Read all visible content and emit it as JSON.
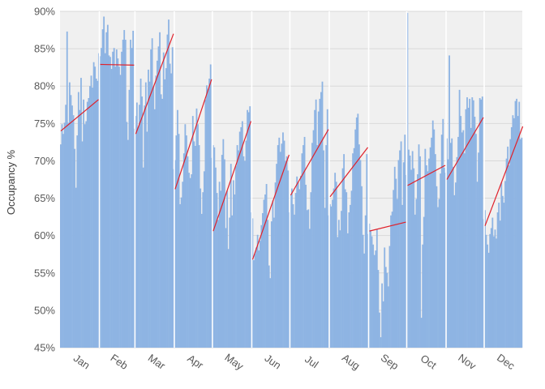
{
  "chart_data": {
    "type": "bar",
    "title": "",
    "xlabel": "",
    "ylabel": "Occupancy %",
    "ylim": [
      45,
      90
    ],
    "y_tick_values": [
      45,
      50,
      55,
      60,
      65,
      70,
      75,
      80,
      85,
      90
    ],
    "y_tick_labels": [
      "45%",
      "50%",
      "55%",
      "60%",
      "65%",
      "70%",
      "75%",
      "80%",
      "85%",
      "90%"
    ],
    "months": [
      "Jan",
      "Feb",
      "Mar",
      "Apr",
      "May",
      "Jun",
      "Jul",
      "Aug",
      "Sep",
      "Oct",
      "Nov",
      "Dec"
    ],
    "days_per_month": [
      31,
      28,
      31,
      30,
      31,
      30,
      31,
      31,
      30,
      31,
      30,
      31
    ],
    "series": [
      {
        "values": [
          72.2,
          74.9,
          73.6,
          75.1,
          77.5,
          87.3,
          75.1,
          80.5,
          78.8,
          77.4,
          76.1,
          71.6,
          66.4,
          73.4,
          79.2,
          76.8,
          81.1,
          72.6,
          78.2,
          74.9,
          75.3,
          77.9,
          78.4,
          80.0,
          81.4,
          79.8,
          83.2,
          82.6,
          81.0,
          80.7,
          84.4,
          84.0,
          85.1,
          87.6,
          89.3,
          84.4,
          87.2,
          88.2,
          84.1,
          83.9,
          82.3,
          84.6,
          85.1,
          82.6,
          84.9,
          83.7,
          82.6,
          81.5,
          84.6,
          86.2,
          87.5,
          86.2,
          75.2,
          72.8,
          79.5,
          86.2,
          85.1,
          87.4,
          74.3,
          76.0,
          77.8,
          74.5,
          77.5,
          81.0,
          78.6,
          69.1,
          77.4,
          80.5,
          73.9,
          82.2,
          80.6,
          84.9,
          86.4,
          79.9,
          76.9,
          81.4,
          83.4,
          85.3,
          87.2,
          78.9,
          78.3,
          84.5,
          80.9,
          82.4,
          86.9,
          88.9,
          83.0,
          81.7,
          85.2,
          68.9,
          70.1,
          73.4,
          76.8,
          73.6,
          64.2,
          65.1,
          67.2,
          71.0,
          74.9,
          73.4,
          70.6,
          68.4,
          67.7,
          68.2,
          76.0,
          72.6,
          72.0,
          77.0,
          74.9,
          72.1,
          66.3,
          62.9,
          65.8,
          68.6,
          78.2,
          80.1,
          79.6,
          81.0,
          82.9,
          70.4,
          72.1,
          71.8,
          69.1,
          65.7,
          62.1,
          67.2,
          66.0,
          70.8,
          72.9,
          70.2,
          61.0,
          66.0,
          58.2,
          62.4,
          69.6,
          62.7,
          67.4,
          65.5,
          69.3,
          72.1,
          71.4,
          73.9,
          74.5,
          75.3,
          70.6,
          70.0,
          72.7,
          76.8,
          76.5,
          77.3,
          63.1,
          62.3,
          56.7,
          57.6,
          58.4,
          60.1,
          58.0,
          59.3,
          61.4,
          63.0,
          64.8,
          65.5,
          66.9,
          62.1,
          56.0,
          54.3,
          61.9,
          64.7,
          62.4,
          67.1,
          69.6,
          72.1,
          73.1,
          71.2,
          72.3,
          73.8,
          72.7,
          70.0,
          70.6,
          68.7,
          63.1,
          65.4,
          66.3,
          64.2,
          62.8,
          65.7,
          67.9,
          67.1,
          66.2,
          68.0,
          71.0,
          72.1,
          73.2,
          66.8,
          63.4,
          63.5,
          60.9,
          65.8,
          72.4,
          74.1,
          76.8,
          78.2,
          72.1,
          76.6,
          78.3,
          79.2,
          80.6,
          71.4,
          63.7,
          72.1,
          76.9,
          62.7,
          64.2,
          63.9,
          64.8,
          66.3,
          68.4,
          67.2,
          59.8,
          62.1,
          60.7,
          63.3,
          69.0,
          70.9,
          66.2,
          65.8,
          60.3,
          63.1,
          64.1,
          66.0,
          71.0,
          71.7,
          74.2,
          75.8,
          76.3,
          72.2,
          70.1,
          66.6,
          60.1,
          57.6,
          62.7,
          70.9,
          60.2,
          61.6,
          60.6,
          59.9,
          58.8,
          57.4,
          58.0,
          60.8,
          55.4,
          49.7,
          46.4,
          53.6,
          51.2,
          58.4,
          55.8,
          55.0,
          53.2,
          58.6,
          62.7,
          63.2,
          66.1,
          69.2,
          67.6,
          64.9,
          70.1,
          71.4,
          72.6,
          64.1,
          69.8,
          73.5,
          68.1,
          89.8,
          71.5,
          70.7,
          68.8,
          71.3,
          69.0,
          62.8,
          64.9,
          68.2,
          72.2,
          70.6,
          49.0,
          58.8,
          62.5,
          71.6,
          69.4,
          68.6,
          70.3,
          71.8,
          73.1,
          75.4,
          74.2,
          70.9,
          66.6,
          63.8,
          64.9,
          68.3,
          73.5,
          75.6,
          69.1,
          68.4,
          73.0,
          70.2,
          84.1,
          72.4,
          73.0,
          69.2,
          65.4,
          67.1,
          70.5,
          73.2,
          79.5,
          76.0,
          73.8,
          74.1,
          71.0,
          76.9,
          78.5,
          77.1,
          78.3,
          74.4,
          78.5,
          78.1,
          75.9,
          73.6,
          67.2,
          71.1,
          78.4,
          78.2,
          78.6,
          62.2,
          63.4,
          60.1,
          58.8,
          57.7,
          60.2,
          61.0,
          62.4,
          59.9,
          60.8,
          59.6,
          63.1,
          64.4,
          62.0,
          67.1,
          65.3,
          64.4,
          67.3,
          70.3,
          71.9,
          69.4,
          72.9,
          74.5,
          76.1,
          75.7,
          78.0,
          78.3,
          76.0,
          77.9,
          72.9,
          73.1
        ],
        "color": "#8EB4E3"
      }
    ],
    "trend_lines": [
      {
        "month": "Jan",
        "start": 74.0,
        "end": 78.2
      },
      {
        "month": "Feb",
        "start": 82.9,
        "end": 82.8
      },
      {
        "month": "Mar",
        "start": 73.6,
        "end": 87.0
      },
      {
        "month": "Apr",
        "start": 66.2,
        "end": 80.9
      },
      {
        "month": "May",
        "start": 60.6,
        "end": 75.3
      },
      {
        "month": "Jun",
        "start": 56.8,
        "end": 70.8
      },
      {
        "month": "Jul",
        "start": 65.4,
        "end": 74.2
      },
      {
        "month": "Aug",
        "start": 65.2,
        "end": 71.8
      },
      {
        "month": "Sep",
        "start": 60.6,
        "end": 61.8
      },
      {
        "month": "Oct",
        "start": 66.7,
        "end": 69.4
      },
      {
        "month": "Nov",
        "start": 67.5,
        "end": 75.8
      },
      {
        "month": "Dec",
        "start": 61.3,
        "end": 74.6
      }
    ],
    "trend_color": "#E0202A",
    "grid": true,
    "plot_background": "#F0F0F0",
    "month_separator_color": "#FFFFFF",
    "legend": "none"
  }
}
